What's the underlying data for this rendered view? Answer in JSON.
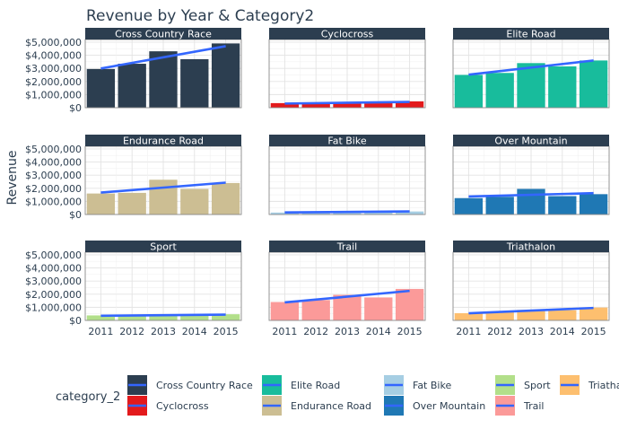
{
  "chart_data": {
    "type": "bar",
    "title": "Revenue by Year & Category2",
    "xlabel": "",
    "ylabel": "Revenue",
    "ylim": [
      0,
      5200000
    ],
    "y_ticks": [
      0,
      1000000,
      2000000,
      3000000,
      4000000,
      5000000
    ],
    "y_tick_labels": [
      "$0",
      "$1,000,000",
      "$2,000,000",
      "$3,000,000",
      "$4,000,000",
      "$5,000,000"
    ],
    "categories": [
      "2011",
      "2012",
      "2013",
      "2014",
      "2015"
    ],
    "facet_by": "category_2",
    "trend_line": "linear fit per panel",
    "trend_color": "#3366ff",
    "grid": true,
    "legend": {
      "title": "category_2",
      "position": "bottom",
      "entries": [
        "Cross Country Race",
        "Cyclocross",
        "Elite Road",
        "Endurance Road",
        "Fat Bike",
        "Over Mountain",
        "Sport",
        "Trail",
        "Triathalon"
      ]
    },
    "series": [
      {
        "name": "Cross Country Race",
        "color": "#2c3e50",
        "values": [
          2950000,
          3350000,
          4300000,
          3700000,
          4900000
        ]
      },
      {
        "name": "Cyclocross",
        "color": "#e31a1c",
        "values": [
          350000,
          330000,
          350000,
          380000,
          480000
        ]
      },
      {
        "name": "Elite Road",
        "color": "#18bc9c",
        "values": [
          2500000,
          2650000,
          3400000,
          3150000,
          3600000
        ]
      },
      {
        "name": "Endurance Road",
        "color": "#ccbe93",
        "values": [
          1600000,
          1650000,
          2650000,
          1950000,
          2400000
        ]
      },
      {
        "name": "Fat Bike",
        "color": "#a6cee3",
        "values": [
          150000,
          170000,
          230000,
          200000,
          230000
        ]
      },
      {
        "name": "Over Mountain",
        "color": "#1f78b4",
        "values": [
          1250000,
          1350000,
          1950000,
          1400000,
          1550000
        ]
      },
      {
        "name": "Sport",
        "color": "#b2df8a",
        "values": [
          380000,
          360000,
          400000,
          380000,
          470000
        ]
      },
      {
        "name": "Trail",
        "color": "#fb9a99",
        "values": [
          1400000,
          1550000,
          1950000,
          1750000,
          2400000
        ]
      },
      {
        "name": "Triathalon",
        "color": "#fdbf6f",
        "values": [
          550000,
          620000,
          800000,
          780000,
          980000
        ]
      }
    ]
  }
}
